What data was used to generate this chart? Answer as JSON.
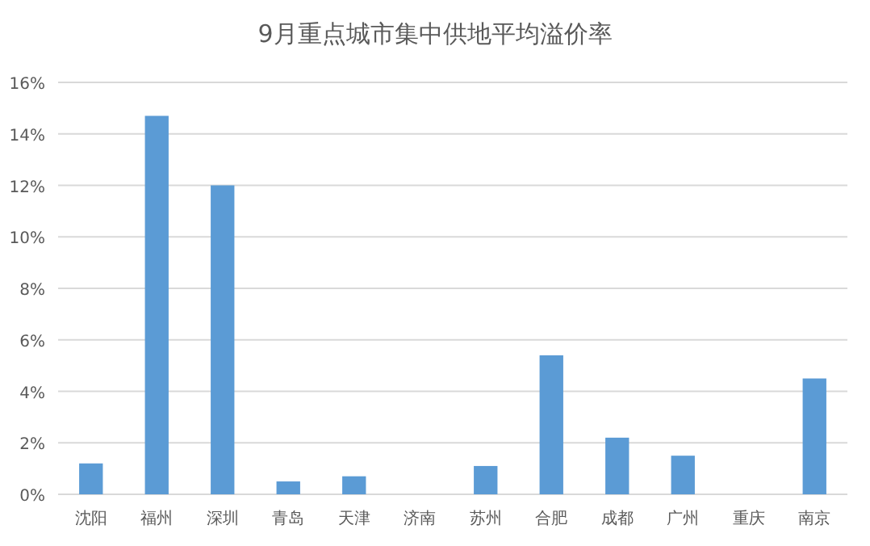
{
  "chart_data": {
    "type": "bar",
    "title": "9月重点城市集中供地平均溢价率",
    "categories": [
      "沈阳",
      "福州",
      "深圳",
      "青岛",
      "天津",
      "济南",
      "苏州",
      "合肥",
      "成都",
      "广州",
      "重庆",
      "南京"
    ],
    "values": [
      1.2,
      14.7,
      12.0,
      0.5,
      0.7,
      0,
      1.1,
      5.4,
      2.2,
      1.5,
      0,
      4.5
    ],
    "color": "#5b9bd5",
    "ylim": [
      0,
      16
    ],
    "yticks": [
      {
        "value": 0,
        "label": "0%"
      },
      {
        "value": 2,
        "label": "2%"
      },
      {
        "value": 4,
        "label": "4%"
      },
      {
        "value": 6,
        "label": "6%"
      },
      {
        "value": 8,
        "label": "8%"
      },
      {
        "value": 10,
        "label": "10%"
      },
      {
        "value": 12,
        "label": "12%"
      },
      {
        "value": 14,
        "label": "14%"
      },
      {
        "value": 16,
        "label": "16%"
      }
    ],
    "grid": "y"
  }
}
